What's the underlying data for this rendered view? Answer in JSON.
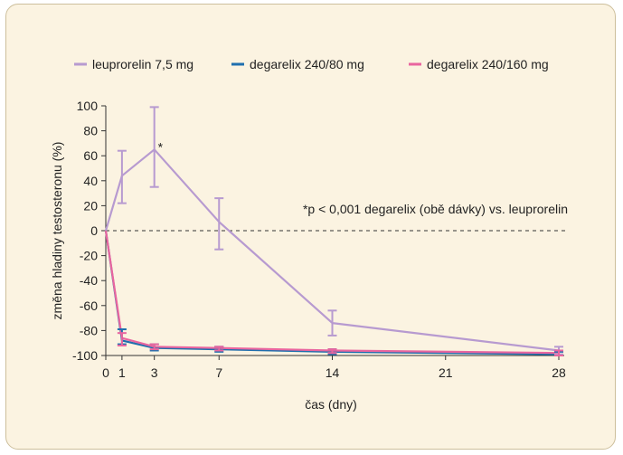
{
  "chart_data": {
    "type": "line",
    "xlabel": "čas (dny)",
    "ylabel": "změna hladiny testosteronu (%)",
    "xlim": [
      0,
      28
    ],
    "ylim": [
      -100,
      100
    ],
    "x_ticks": [
      0,
      1,
      3,
      7,
      14,
      21,
      28
    ],
    "y_ticks": [
      100,
      80,
      60,
      40,
      20,
      0,
      -20,
      -40,
      -60,
      -80,
      -100
    ],
    "legend_position": "top",
    "grid": false,
    "annotation": "*p < 0,001 degarelix (obě dávky) vs. leuprorelin",
    "significance_marker": {
      "text": "*",
      "x": 3
    },
    "zero_line": "dashed",
    "series": [
      {
        "name": "leuprorelin 7,5 mg",
        "color": "#b79ad0",
        "x": [
          0,
          1,
          3,
          7,
          14,
          28
        ],
        "y": [
          0,
          44,
          65,
          7,
          -74,
          -96
        ],
        "err_low": [
          0,
          22,
          35,
          -15,
          -84,
          -99
        ],
        "err_high": [
          0,
          64,
          99,
          26,
          -64,
          -93
        ]
      },
      {
        "name": "degarelix 240/80 mg",
        "color": "#1f6fae",
        "x": [
          0,
          1,
          3,
          7,
          14,
          28
        ],
        "y": [
          0,
          -88,
          -94,
          -95,
          -97,
          -99
        ],
        "err_low": [
          0,
          -91,
          -96,
          -97,
          -99,
          -100
        ],
        "err_high": [
          0,
          -79,
          -91,
          -93,
          -95,
          -97
        ]
      },
      {
        "name": "degarelix 240/160 mg",
        "color": "#e9659f",
        "x": [
          0,
          1,
          3,
          7,
          14,
          28
        ],
        "y": [
          0,
          -86,
          -93,
          -94,
          -96,
          -98
        ],
        "err_low": [
          0,
          -92,
          -95,
          -96,
          -98,
          -100
        ],
        "err_high": [
          0,
          -82,
          -91,
          -93,
          -95,
          -96
        ]
      }
    ]
  }
}
